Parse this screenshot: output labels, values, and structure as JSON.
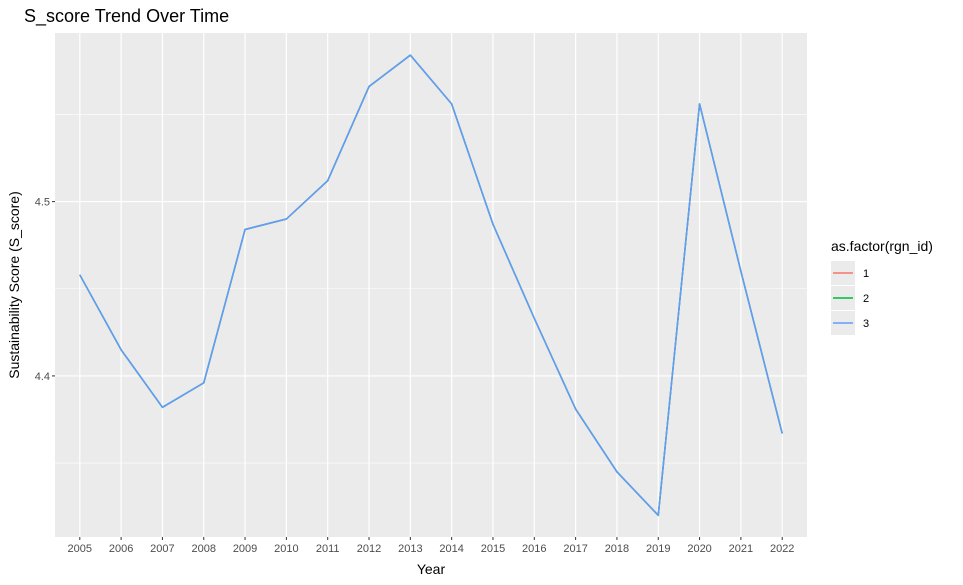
{
  "chart_data": {
    "type": "line",
    "title": "S_score Trend Over Time",
    "xlabel": "Year",
    "ylabel": "Sustainability Score (S_score)",
    "x": [
      "2005",
      "2006",
      "2007",
      "2008",
      "2009",
      "2010",
      "2011",
      "2012",
      "2013",
      "2014",
      "2015",
      "2016",
      "2017",
      "2018",
      "2019",
      "2020",
      "2021",
      "2022"
    ],
    "ylim": [
      4.3076,
      4.5967
    ],
    "y_ticks": [
      4.4,
      4.5
    ],
    "y_tick_labels": [
      "4.4",
      "4.5"
    ],
    "grid": true,
    "legend_position": "right",
    "legend_title": "as.factor(rgn_id)",
    "series": [
      {
        "name": "1",
        "color": "#F8766D",
        "values": [
          4.458,
          4.415,
          4.382,
          4.396,
          4.484,
          4.49,
          4.512,
          4.566,
          4.584,
          4.556,
          4.487,
          4.433,
          4.381,
          4.345,
          4.32,
          4.556,
          4.46,
          4.367
        ]
      },
      {
        "name": "2",
        "color": "#00BA38",
        "values": [
          4.458,
          4.415,
          4.382,
          4.396,
          4.484,
          4.49,
          4.512,
          4.566,
          4.584,
          4.556,
          4.487,
          4.433,
          4.381,
          4.345,
          4.32,
          4.556,
          4.46,
          4.367
        ]
      },
      {
        "name": "3",
        "color": "#619CFF",
        "values": [
          4.458,
          4.415,
          4.382,
          4.396,
          4.484,
          4.49,
          4.512,
          4.566,
          4.584,
          4.556,
          4.487,
          4.433,
          4.381,
          4.345,
          4.32,
          4.556,
          4.46,
          4.367
        ]
      }
    ]
  }
}
